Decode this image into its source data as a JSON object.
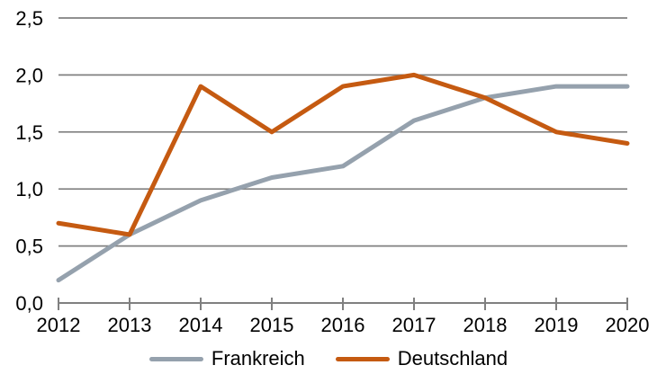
{
  "chart_data": {
    "type": "line",
    "categories": [
      "2012",
      "2013",
      "2014",
      "2015",
      "2016",
      "2017",
      "2018",
      "2019",
      "2020"
    ],
    "series": [
      {
        "name": "Frankreich",
        "color": "#95a1ad",
        "values": [
          0.2,
          0.6,
          0.9,
          1.1,
          1.2,
          1.6,
          1.8,
          1.9,
          1.9
        ]
      },
      {
        "name": "Deutschland",
        "color": "#c55a11",
        "values": [
          0.7,
          0.6,
          1.9,
          1.5,
          1.9,
          2.0,
          1.8,
          1.5,
          1.4
        ]
      }
    ],
    "title": "",
    "xlabel": "",
    "ylabel": "",
    "ylim": [
      0,
      2.5
    ],
    "ytick_step": 0.5,
    "ytick_labels": [
      "0,0",
      "0,5",
      "1,0",
      "1,5",
      "2,0",
      "2,5"
    ],
    "grid": true,
    "legend_position": "bottom",
    "grid_color": "#808080",
    "axis_color": "#808080",
    "label_color": "#000000"
  }
}
